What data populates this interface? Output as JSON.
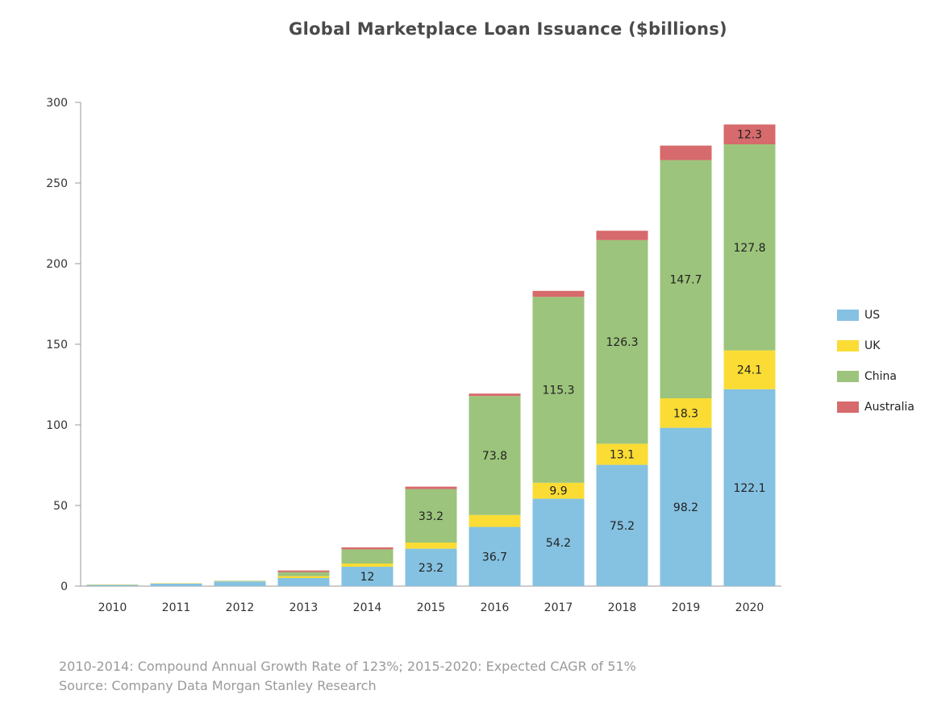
{
  "chart_data": {
    "type": "bar",
    "stacked": true,
    "title": "Global Marketplace Loan Issuance ($billions)",
    "categories": [
      "2010",
      "2011",
      "2012",
      "2013",
      "2014",
      "2015",
      "2016",
      "2017",
      "2018",
      "2019",
      "2020"
    ],
    "ylim": [
      0,
      300
    ],
    "yticks": [
      0,
      50,
      100,
      150,
      200,
      250,
      300
    ],
    "grid": false,
    "legend_position": "right",
    "series": [
      {
        "name": "US",
        "color": "#85c1e1",
        "values": [
          0.9,
          1.6,
          2.9,
          5.0,
          12.0,
          23.2,
          36.7,
          54.2,
          75.2,
          98.2,
          122.1
        ],
        "labels": [
          "",
          "",
          "",
          "",
          "12",
          "23.2",
          "36.7",
          "54.2",
          "75.2",
          "98.2",
          "122.1"
        ]
      },
      {
        "name": "UK",
        "color": "#fadc35",
        "values": [
          0.1,
          0.2,
          0.3,
          1.2,
          2.0,
          3.8,
          7.4,
          9.9,
          13.1,
          18.3,
          24.1
        ],
        "labels": [
          "",
          "",
          "",
          "",
          "",
          "",
          "",
          "9.9",
          "13.1",
          "18.3",
          "24.1"
        ]
      },
      {
        "name": "China",
        "color": "#9cc47c",
        "values": [
          0.0,
          0.0,
          0.1,
          2.5,
          8.8,
          33.2,
          73.8,
          115.3,
          126.3,
          147.7,
          127.8
        ],
        "labels": [
          "",
          "",
          "",
          "",
          "",
          "33.2",
          "73.8",
          "115.3",
          "126.3",
          "147.7",
          "127.8"
        ]
      },
      {
        "name": "Australia",
        "color": "#d66a6c",
        "values": [
          0.0,
          0.0,
          0.0,
          1.0,
          1.2,
          1.5,
          1.5,
          3.7,
          5.8,
          9.0,
          12.3
        ],
        "labels": [
          "",
          "",
          "",
          "",
          "",
          "",
          "",
          "",
          "",
          "",
          "12.3"
        ]
      }
    ]
  },
  "notes": {
    "line1": "2010-2014: Compound Annual Growth Rate of 123%; 2015-2020: Expected CAGR of 51%",
    "line2": "Source: Company Data Morgan Stanley Research"
  }
}
